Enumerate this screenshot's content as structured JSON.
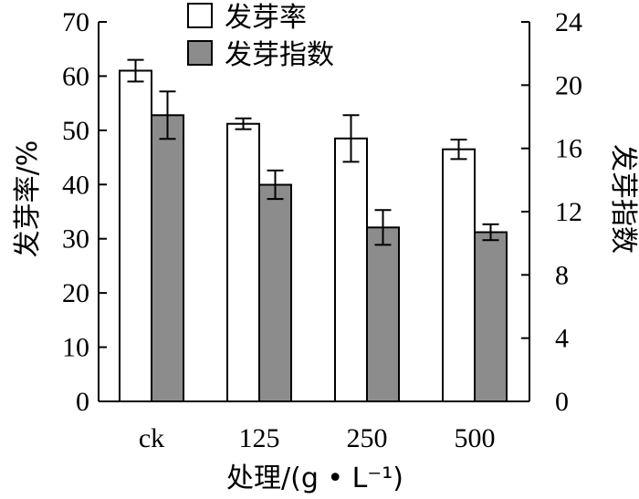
{
  "chart_data": {
    "type": "bar",
    "categories": [
      "ck",
      "125",
      "250",
      "500"
    ],
    "series": [
      {
        "name": "发芽率",
        "axis": "left",
        "color": "#ffffff",
        "values": [
          61,
          51.2,
          48.5,
          46.5
        ],
        "errors": [
          2.0,
          1.0,
          4.3,
          1.8
        ]
      },
      {
        "name": "发芽指数",
        "axis": "right",
        "color": "#8c8c8c",
        "values": [
          18.1,
          13.7,
          11.0,
          10.7
        ],
        "errors": [
          1.5,
          0.9,
          1.1,
          0.5
        ]
      }
    ],
    "xlabel": "处理/(g • L⁻¹)",
    "ylabel": "发芽率/%",
    "y2label": "发芽指数",
    "ylim": [
      0,
      70
    ],
    "y2lim": [
      0,
      24
    ],
    "yticks": [
      "0",
      "10",
      "20",
      "30",
      "40",
      "50",
      "60",
      "70"
    ],
    "y2ticks": [
      "0",
      "4",
      "8",
      "12",
      "16",
      "20",
      "24"
    ],
    "grid": false,
    "legend": "top-center"
  }
}
